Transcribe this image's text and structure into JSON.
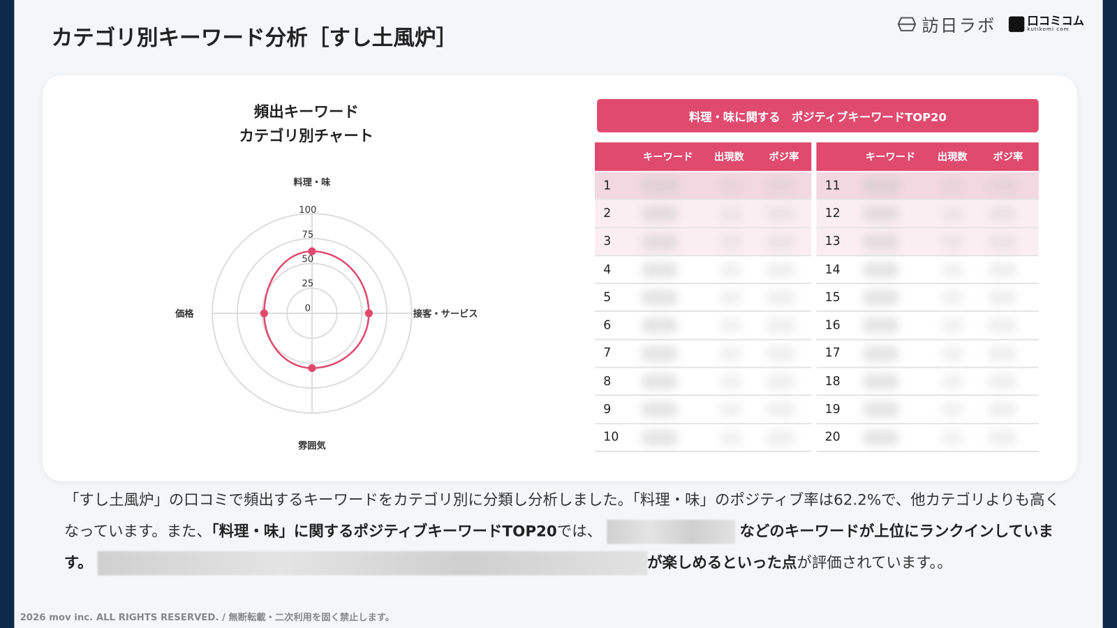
{
  "header": {
    "title": "カテゴリ別キーワード分析［すし土風炉］",
    "logo_1": "訪日ラボ",
    "logo_2": "口コミコム",
    "logo_2_sub": "kutikomi com"
  },
  "chart_data": {
    "type": "radar",
    "title": "頻出キーワード\nカテゴリ別チャート",
    "title_line1": "頻出キーワード",
    "title_line2": "カテゴリ別チャート",
    "categories": [
      "料理・味",
      "接客・サービス",
      "雰囲気",
      "価格"
    ],
    "values": [
      62.2,
      57,
      55,
      48
    ],
    "rlim": [
      0,
      100
    ],
    "ticks": [
      "0",
      "25",
      "50",
      "75",
      "100"
    ],
    "color": "#e04a6e",
    "grid": true
  },
  "table": {
    "banner": "料理・味に関する　ポジティブキーワードTOP20",
    "headers": [
      "キーワード",
      "出現数",
      "ポジ率"
    ],
    "left_ranks": [
      "1",
      "2",
      "3",
      "4",
      "5",
      "6",
      "7",
      "8",
      "9",
      "10"
    ],
    "right_ranks": [
      "11",
      "12",
      "13",
      "14",
      "15",
      "16",
      "17",
      "18",
      "19",
      "20"
    ],
    "accent": "#e04a6e"
  },
  "description": {
    "p1": "「すし土風炉」の口コミで頻出するキーワードをカテゴリ別に分類し分析しました。「料理・味」のポジティブ率は62.2%で、他カテゴリよりも高くなっています。また、",
    "b1": "「料理・味」に関するポジティブキーワードTOP20",
    "p2": "では、",
    "b2": "などのキーワードが上位にランクインしています。",
    "b3": "が楽しめるといった点",
    "p3": "が評価されています。。"
  },
  "footer": "2026 mov inc. ALL RIGHTS RESERVED. / 無断転載・二次利用を固く禁止します。"
}
